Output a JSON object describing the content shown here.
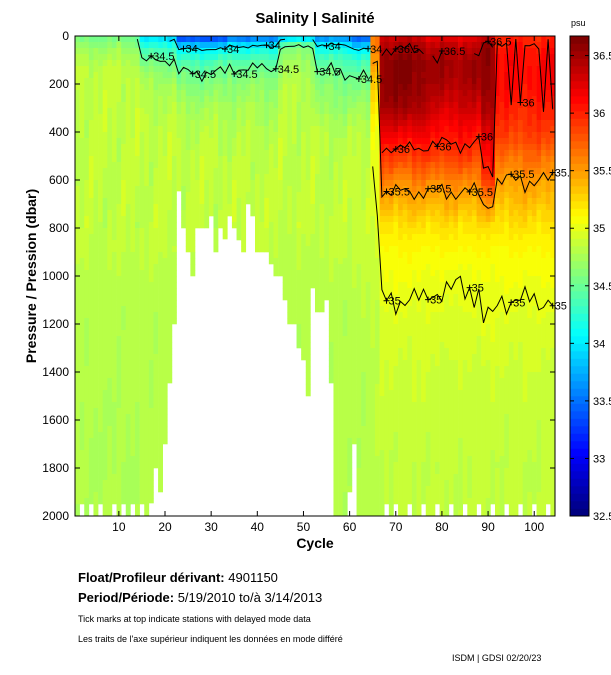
{
  "chart_data": {
    "type": "heatmap",
    "title": "Salinity | Salinité",
    "xlabel": "Cycle",
    "ylabel": "Pressure / Pression (dbar)",
    "xlim": [
      0.5,
      104.5
    ],
    "ylim": [
      0,
      2000
    ],
    "y_inverted": true,
    "xticks": [
      10,
      20,
      30,
      40,
      50,
      60,
      70,
      80,
      90,
      100
    ],
    "yticks": [
      0,
      200,
      400,
      600,
      800,
      1000,
      1200,
      1400,
      1600,
      1800,
      2000
    ],
    "colorbar": {
      "label": "psu",
      "range": [
        32.5,
        36.67
      ],
      "ticks": [
        32.5,
        33,
        33.5,
        34,
        34.5,
        35,
        35.5,
        36,
        36.5
      ],
      "tick_labels": [
        "32.5",
        "33",
        "33.5",
        "34",
        "34.5",
        "35",
        "35.5",
        "36",
        "36.5"
      ],
      "colormap": "jet"
    },
    "contour_levels": [
      34,
      34.5,
      35,
      35.5,
      36,
      36.5
    ],
    "contour_labels": [
      "34",
      "34.5",
      "35",
      "35.5",
      "36",
      "36.5"
    ],
    "pressure_levels": [
      0,
      25,
      50,
      100,
      150,
      200,
      300,
      400,
      500,
      600,
      700,
      800,
      900,
      1000,
      1200,
      1400,
      1600,
      1800,
      2000
    ],
    "profiles": [
      {
        "cycles": [
          1,
          14
        ],
        "salinity": [
          34.55,
          34.6,
          34.7,
          34.8,
          34.85,
          34.85,
          34.85,
          34.85,
          34.85,
          34.85,
          34.85,
          34.85,
          34.85,
          34.82,
          34.8,
          34.8,
          34.78,
          34.78,
          34.78
        ]
      },
      {
        "cycles": [
          15,
          22
        ],
        "salinity": [
          33.9,
          34.1,
          34.3,
          34.5,
          34.65,
          34.75,
          34.82,
          34.85,
          34.85,
          34.85,
          34.85,
          34.85,
          34.85,
          34.82,
          34.8,
          34.8,
          34.8,
          34.8,
          34.8
        ]
      },
      {
        "cycles": [
          23,
          33
        ],
        "salinity": [
          33.2,
          33.6,
          34.0,
          34.35,
          34.5,
          34.6,
          34.75,
          34.82,
          34.85,
          34.85,
          34.85,
          34.85,
          34.85,
          34.82,
          34.8,
          34.8,
          34.8,
          34.8,
          34.8
        ]
      },
      {
        "cycles": [
          34,
          44
        ],
        "salinity": [
          33.4,
          33.8,
          34.1,
          34.4,
          34.55,
          34.65,
          34.75,
          34.8,
          34.83,
          34.85,
          34.85,
          34.85,
          34.85,
          34.82,
          34.8,
          34.8,
          34.8,
          34.8,
          34.8
        ]
      },
      {
        "cycles": [
          45,
          52
        ],
        "salinity": [
          33.7,
          34.3,
          34.6,
          34.7,
          34.75,
          34.8,
          34.82,
          34.85,
          34.85,
          34.85,
          34.85,
          34.85,
          34.83,
          34.82,
          34.8,
          34.8,
          34.8,
          34.8,
          34.8
        ]
      },
      {
        "cycles": [
          53,
          60
        ],
        "salinity": [
          33.5,
          33.9,
          34.1,
          34.4,
          34.5,
          34.6,
          34.7,
          34.8,
          34.83,
          34.85,
          34.85,
          34.85,
          34.85,
          34.82,
          34.8,
          34.8,
          34.8,
          34.8,
          34.8
        ]
      },
      {
        "cycles": [
          61,
          64
        ],
        "salinity": [
          33.4,
          33.6,
          34.0,
          34.3,
          34.45,
          34.55,
          34.7,
          34.8,
          34.85,
          34.88,
          34.9,
          34.9,
          34.88,
          34.85,
          34.82,
          34.8,
          34.8,
          34.8,
          34.8
        ]
      },
      {
        "cycles": [
          65,
          66
        ],
        "salinity": [
          35.6,
          35.6,
          35.6,
          35.5,
          35.4,
          35.3,
          35.2,
          35.1,
          35.05,
          35.0,
          34.95,
          34.9,
          34.9,
          34.88,
          34.85,
          34.85,
          34.83,
          34.82,
          34.82
        ]
      },
      {
        "cycles": [
          67,
          76
        ],
        "salinity": [
          36.3,
          36.4,
          36.5,
          36.6,
          36.6,
          36.6,
          36.5,
          36.2,
          35.9,
          35.6,
          35.4,
          35.2,
          35.1,
          35.05,
          34.95,
          34.9,
          34.88,
          34.85,
          34.85
        ]
      },
      {
        "cycles": [
          77,
          88
        ],
        "salinity": [
          36.2,
          36.3,
          36.4,
          36.5,
          36.5,
          36.45,
          36.3,
          36.1,
          35.9,
          35.6,
          35.4,
          35.2,
          35.1,
          35.02,
          34.95,
          34.9,
          34.88,
          34.85,
          34.85
        ]
      },
      {
        "cycles": [
          89,
          91
        ],
        "salinity": [
          36.3,
          36.5,
          36.6,
          36.6,
          36.6,
          36.6,
          36.5,
          36.3,
          36.1,
          35.9,
          35.5,
          35.2,
          35.1,
          35.05,
          35.0,
          34.9,
          34.88,
          34.85,
          34.85
        ]
      },
      {
        "cycles": [
          92,
          104
        ],
        "salinity": [
          36.0,
          36.0,
          36.05,
          36.1,
          36.1,
          36.1,
          36.0,
          35.9,
          35.7,
          35.5,
          35.35,
          35.2,
          35.1,
          35.05,
          34.95,
          34.9,
          34.87,
          34.85,
          34.85
        ]
      }
    ],
    "max_pressure_by_cycle": {
      "2": 1950,
      "4": 1950,
      "6": 1950,
      "9": 1950,
      "11": 1950,
      "13": 1950,
      "15": 1950,
      "17": 1946,
      "18": 1800,
      "19": 1900,
      "20": 1700,
      "21": 1446,
      "22": 1200,
      "23": 646,
      "24": 800,
      "25": 900,
      "26": 1000,
      "27": 800,
      "28": 800,
      "29": 800,
      "30": 750,
      "31": 900,
      "32": 800,
      "33": 846,
      "34": 750,
      "35": 800,
      "36": 850,
      "37": 900,
      "38": 700,
      "39": 750,
      "40": 900,
      "41": 900,
      "42": 900,
      "43": 950,
      "44": 1000,
      "45": 1000,
      "46": 1100,
      "47": 1200,
      "48": 1200,
      "49": 1300,
      "50": 1350,
      "51": 1500,
      "52": 1050,
      "53": 1150,
      "54": 1150,
      "55": 1100,
      "56": 1446,
      "60": 1900,
      "61": 1700,
      "68": 1950,
      "70": 1950,
      "73": 1950,
      "76": 1950,
      "79": 1950,
      "82": 1950,
      "85": 1950,
      "88": 1950,
      "91": 1950,
      "94": 1950,
      "97": 1950,
      "100": 1950,
      "103": 1950
    }
  },
  "footer": {
    "float_label": "Float/Profileur dérivant:",
    "float_id": "4901150",
    "period_label": "Period/Période:",
    "period_value": "5/19/2010  to/à  3/14/2013",
    "note_en": "Tick marks at top indicate stations with delayed mode data",
    "note_fr": "Les traits de l'axe supérieur indiquent les données en mode différé",
    "credit": "ISDM | GDSI  02/20/23"
  }
}
